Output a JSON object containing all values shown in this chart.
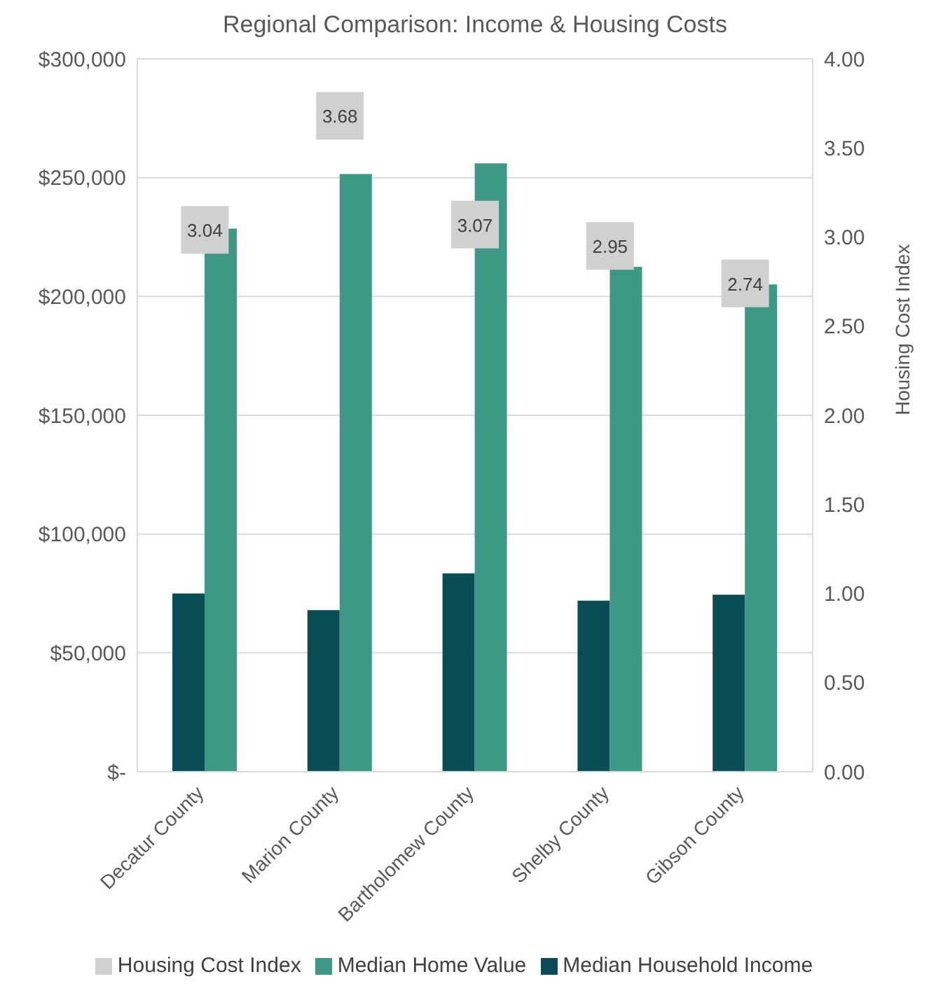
{
  "chart_data": {
    "type": "bar",
    "title": "Regional Comparison: Income & Housing Costs",
    "y2label": "Housing Cost Index",
    "categories": [
      "Decatur County",
      "Marion County",
      "Bartholomew County",
      "Shelby County",
      "Gibson County"
    ],
    "series": [
      {
        "name": "Median Household Income",
        "color": "#0b4d57",
        "values": [
          75000,
          68000,
          83500,
          72000,
          74500
        ]
      },
      {
        "name": "Median Home Value",
        "color": "#3d9986",
        "values": [
          228500,
          251500,
          256000,
          212500,
          205000
        ]
      },
      {
        "name": "Housing Cost Index",
        "type": "scatter",
        "axis": "y2",
        "color": "#d0d0d0",
        "values": [
          3.04,
          3.68,
          3.07,
          2.95,
          2.74
        ],
        "value_labels": [
          "3.04",
          "3.68",
          "3.07",
          "2.95",
          "2.74"
        ]
      }
    ],
    "ylim": [
      0,
      300000
    ],
    "yticks": [
      {
        "value": 0,
        "label": "$-"
      },
      {
        "value": 50000,
        "label": "$50,000"
      },
      {
        "value": 100000,
        "label": "$100,000"
      },
      {
        "value": 150000,
        "label": "$150,000"
      },
      {
        "value": 200000,
        "label": "$200,000"
      },
      {
        "value": 250000,
        "label": "$250,000"
      },
      {
        "value": 300000,
        "label": "$300,000"
      }
    ],
    "y2lim": [
      0,
      4
    ],
    "y2ticks": [
      {
        "value": 0,
        "label": "0.00"
      },
      {
        "value": 0.5,
        "label": "0.50"
      },
      {
        "value": 1,
        "label": "1.00"
      },
      {
        "value": 1.5,
        "label": "1.50"
      },
      {
        "value": 2,
        "label": "2.00"
      },
      {
        "value": 2.5,
        "label": "2.50"
      },
      {
        "value": 3,
        "label": "3.00"
      },
      {
        "value": 3.5,
        "label": "3.50"
      },
      {
        "value": 4,
        "label": "4.00"
      }
    ],
    "grid": "y",
    "legend": "bottom"
  }
}
